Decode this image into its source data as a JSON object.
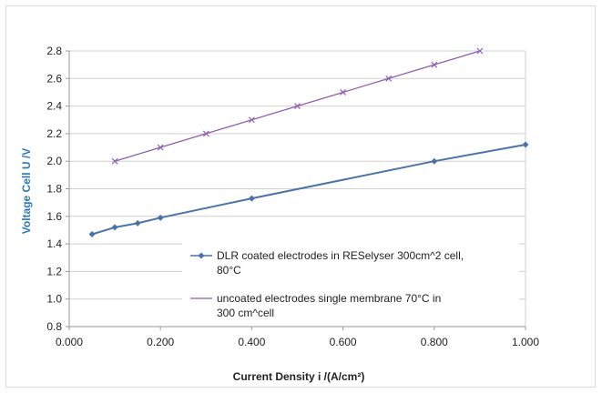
{
  "chart_data": {
    "type": "line",
    "xlabel": "Current Density i /(A/cm²)",
    "ylabel": "Voltage Cell U /V",
    "xlim": [
      0,
      1.0
    ],
    "ylim": [
      0.8,
      2.8
    ],
    "x_ticks": [
      "0.000",
      "0.200",
      "0.400",
      "0.600",
      "0.800",
      "1.000"
    ],
    "x_tick_values": [
      0,
      0.2,
      0.4,
      0.6,
      0.8,
      1.0
    ],
    "y_ticks": [
      "0.8",
      "1.0",
      "1.2",
      "1.4",
      "1.6",
      "1.8",
      "2.0",
      "2.2",
      "2.4",
      "2.6",
      "2.8"
    ],
    "y_tick_values": [
      0.8,
      1.0,
      1.2,
      1.4,
      1.6,
      1.8,
      2.0,
      2.2,
      2.4,
      2.6,
      2.8
    ],
    "grid": "horizontal",
    "legend_position": "bottom-right",
    "series": [
      {
        "name_lines": [
          "DLR coated electrodes in RESelyser 300cm^2 cell,",
          "80°C"
        ],
        "color": "#4a73a8",
        "marker": "diamond",
        "x": [
          0.05,
          0.1,
          0.15,
          0.2,
          0.4,
          0.8,
          1.0
        ],
        "y": [
          1.47,
          1.52,
          1.55,
          1.59,
          1.73,
          2.0,
          2.12
        ]
      },
      {
        "name_lines": [
          "uncoated electrodes single membrane 70°C in",
          "300 cm^cell"
        ],
        "color": "#8f5fb3",
        "marker": "x",
        "x": [
          0.1,
          0.2,
          0.3,
          0.4,
          0.5,
          0.6,
          0.7,
          0.8,
          0.9
        ],
        "y": [
          2.0,
          2.1,
          2.2,
          2.3,
          2.4,
          2.5,
          2.6,
          2.7,
          2.8
        ]
      }
    ],
    "colors": {
      "axis_title": "#1f77b4",
      "grid": "#d0d0d0"
    }
  }
}
